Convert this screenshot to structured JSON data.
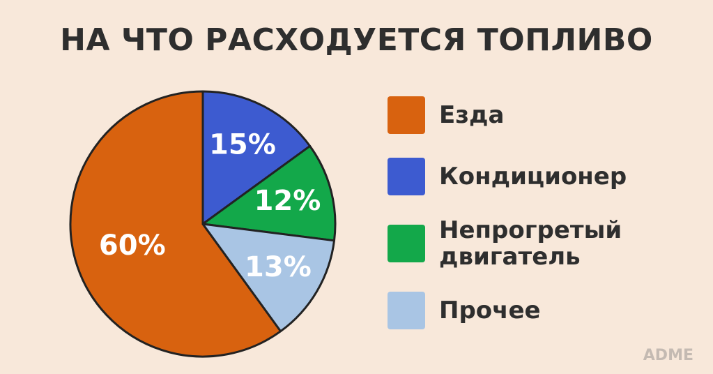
{
  "chart_data": {
    "type": "pie",
    "title": "НА ЧТО РАСХОДУЕТСЯ ТОПЛИВО",
    "categories": [
      "Езда",
      "Кондиционер",
      "Непрогретый двигатель",
      "Прочее"
    ],
    "values": [
      60,
      15,
      12,
      13
    ],
    "value_labels": [
      "60%",
      "15%",
      "12%",
      "13%"
    ],
    "colors": [
      "#d8620f",
      "#3d5bd0",
      "#13a84a",
      "#a9c5e4"
    ],
    "legend": "right"
  },
  "watermark": "ADME"
}
